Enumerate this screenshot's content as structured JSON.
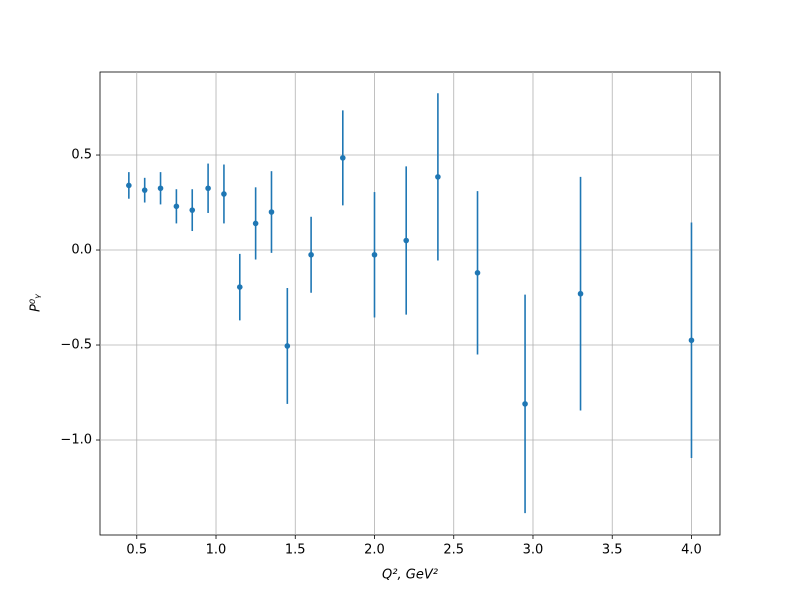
{
  "chart_data": {
    "type": "errorbar",
    "xlabel": "Q², GeV²",
    "ylabel": "P⁰ᵧ",
    "x": [
      0.45,
      0.55,
      0.65,
      0.75,
      0.85,
      0.95,
      1.05,
      1.15,
      1.25,
      1.35,
      1.45,
      1.6,
      1.8,
      2.0,
      2.2,
      2.4,
      2.65,
      2.95,
      3.3,
      4.0
    ],
    "values": [
      0.34,
      0.315,
      0.325,
      0.23,
      0.21,
      0.325,
      0.295,
      -0.195,
      0.14,
      0.2,
      -0.505,
      -0.025,
      0.485,
      -0.025,
      0.05,
      0.385,
      -0.12,
      -0.81,
      -0.23,
      -0.475
    ],
    "errors": [
      0.07,
      0.065,
      0.085,
      0.09,
      0.11,
      0.13,
      0.155,
      0.175,
      0.19,
      0.215,
      0.305,
      0.2,
      0.25,
      0.33,
      0.39,
      0.44,
      0.43,
      0.575,
      0.615,
      0.62
    ],
    "color": "#1f77b4",
    "xlim": [
      0.268,
      4.18
    ],
    "ylim": [
      -1.5,
      0.937
    ],
    "xticks": [
      0.5,
      {
        "value": 1.0,
        "label": "1.0"
      },
      1.5,
      {
        "value": 2.0,
        "label": "2.0"
      },
      2.5,
      {
        "value": 3.0,
        "label": "3.0"
      },
      3.5,
      {
        "value": 4.0,
        "label": "4.0"
      }
    ],
    "yticks": [
      {
        "value": -1.0,
        "label": "−1.0"
      },
      {
        "value": -0.5,
        "label": "−0.5"
      },
      {
        "value": 0.0,
        "label": "0.0"
      },
      0.5
    ],
    "grid": true
  }
}
